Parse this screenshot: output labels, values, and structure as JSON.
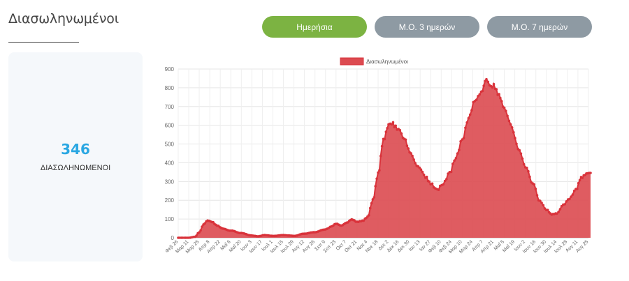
{
  "page": {
    "title": "Διασωληνωμένοι"
  },
  "tabs": [
    {
      "label": "Ημερήσια",
      "active": true
    },
    {
      "label": "Μ.Ο. 3 ημερών",
      "active": false
    },
    {
      "label": "Μ.Ο. 7 ημερών",
      "active": false
    }
  ],
  "stat": {
    "value": "346",
    "label": "ΔΙΑΣΩΛΗΝΩΜΕΝΟΙ"
  },
  "colors": {
    "accent_green": "#7cb342",
    "button_gray": "#8e9aa3",
    "stat_blue": "#2aa7e2",
    "series_red": "#d9333b",
    "series_fill": "#dc4a50"
  },
  "chart_data": {
    "type": "area",
    "legend": "Διασωληνωμένοι",
    "legend_position": "top",
    "grid": true,
    "ylim": [
      0,
      900
    ],
    "yticks": [
      0,
      100,
      200,
      300,
      400,
      500,
      600,
      700,
      800,
      900
    ],
    "xticks": [
      "Φεβ 26",
      "Μαρ 11",
      "Μαρ 25",
      "Απρ 8",
      "Απρ 22",
      "Μαΐ 6",
      "Μαΐ 20",
      "Ιουν 3",
      "Ιουν 17",
      "Ιουλ 1",
      "Ιουλ 15",
      "Ιουλ 29",
      "Αυγ 12",
      "Αυγ 26",
      "Σεπ 9",
      "Σεπ 23",
      "Οκτ 7",
      "Οκτ 21",
      "Νοε 4",
      "Νοε 18",
      "Δεκ 2",
      "Δεκ 16",
      "Δεκ 30",
      "Ιαν 13",
      "Ιαν 27",
      "Φεβ 10",
      "Φεβ 24",
      "Μαρ 10",
      "Μαρ 24",
      "Απρ 7",
      "Απρ 21",
      "Μαΐ 5",
      "Μαΐ 19",
      "Ιουν 2",
      "Ιουν 16",
      "Ιουν 30",
      "Ιουλ 14",
      "Ιουλ 28",
      "Αυγ 11",
      "Αυγ 25"
    ],
    "xticks_note": "The axis cycles through dates twice (2020 then 2021); each key point index below refers to an xticks label index.",
    "key_points": [
      {
        "i": 0,
        "y": 0
      },
      {
        "i": 1,
        "y": 0
      },
      {
        "i": 1.6,
        "y": 5
      },
      {
        "i": 2.0,
        "y": 30
      },
      {
        "i": 2.4,
        "y": 70
      },
      {
        "i": 2.8,
        "y": 92
      },
      {
        "i": 3.2,
        "y": 85
      },
      {
        "i": 3.7,
        "y": 65
      },
      {
        "i": 4.2,
        "y": 50
      },
      {
        "i": 5.0,
        "y": 38
      },
      {
        "i": 6.0,
        "y": 25
      },
      {
        "i": 7.0,
        "y": 12
      },
      {
        "i": 7.6,
        "y": 8
      },
      {
        "i": 8.2,
        "y": 14
      },
      {
        "i": 9.0,
        "y": 10
      },
      {
        "i": 10.0,
        "y": 14
      },
      {
        "i": 10.6,
        "y": 12
      },
      {
        "i": 11.0,
        "y": 10
      },
      {
        "i": 12.0,
        "y": 22
      },
      {
        "i": 13.0,
        "y": 30
      },
      {
        "i": 14.0,
        "y": 45
      },
      {
        "i": 14.6,
        "y": 60
      },
      {
        "i": 15.0,
        "y": 75
      },
      {
        "i": 15.5,
        "y": 65
      },
      {
        "i": 16.0,
        "y": 80
      },
      {
        "i": 16.5,
        "y": 98
      },
      {
        "i": 17.0,
        "y": 85
      },
      {
        "i": 17.5,
        "y": 90
      },
      {
        "i": 18.0,
        "y": 110
      },
      {
        "i": 18.5,
        "y": 200
      },
      {
        "i": 19.0,
        "y": 340
      },
      {
        "i": 19.5,
        "y": 520
      },
      {
        "i": 20.0,
        "y": 600
      },
      {
        "i": 20.3,
        "y": 612
      },
      {
        "i": 20.8,
        "y": 585
      },
      {
        "i": 21.5,
        "y": 530
      },
      {
        "i": 22.0,
        "y": 460
      },
      {
        "i": 22.8,
        "y": 385
      },
      {
        "i": 23.5,
        "y": 325
      },
      {
        "i": 24.0,
        "y": 290
      },
      {
        "i": 24.6,
        "y": 255
      },
      {
        "i": 25.2,
        "y": 290
      },
      {
        "i": 25.8,
        "y": 345
      },
      {
        "i": 26.4,
        "y": 430
      },
      {
        "i": 27.0,
        "y": 520
      },
      {
        "i": 27.6,
        "y": 640
      },
      {
        "i": 28.2,
        "y": 730
      },
      {
        "i": 28.8,
        "y": 775
      },
      {
        "i": 29.3,
        "y": 845
      },
      {
        "i": 29.6,
        "y": 825
      },
      {
        "i": 30.0,
        "y": 810
      },
      {
        "i": 30.5,
        "y": 760
      },
      {
        "i": 31.0,
        "y": 690
      },
      {
        "i": 31.6,
        "y": 610
      },
      {
        "i": 32.3,
        "y": 480
      },
      {
        "i": 33.0,
        "y": 380
      },
      {
        "i": 33.7,
        "y": 290
      },
      {
        "i": 34.4,
        "y": 195
      },
      {
        "i": 35.0,
        "y": 150
      },
      {
        "i": 35.5,
        "y": 125
      },
      {
        "i": 36.0,
        "y": 130
      },
      {
        "i": 36.6,
        "y": 175
      },
      {
        "i": 37.2,
        "y": 210
      },
      {
        "i": 37.8,
        "y": 255
      },
      {
        "i": 38.3,
        "y": 320
      },
      {
        "i": 38.8,
        "y": 340
      },
      {
        "i": 39.2,
        "y": 346
      }
    ]
  }
}
